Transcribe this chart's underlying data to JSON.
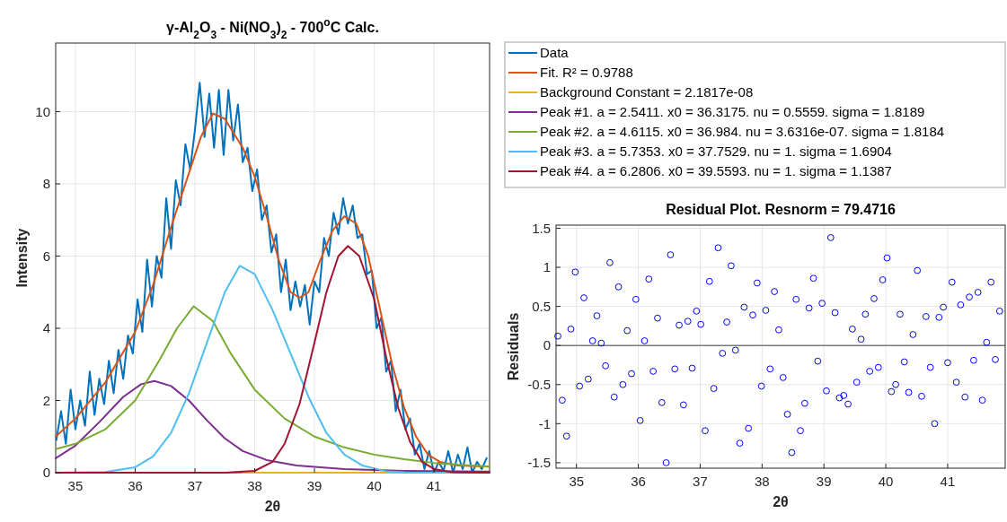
{
  "chart_data": [
    {
      "type": "line",
      "title": "γ-Al$_{2}$O$_{3}$ - Ni(NO$_{3}$)$_{2}$ - 700$^{o}$C Calc.",
      "xlabel": "2θ",
      "ylabel": "Intensity",
      "xlim": [
        34.67,
        41.93
      ],
      "xticks": [
        35,
        36,
        37,
        38,
        39,
        40,
        41
      ],
      "ylim": [
        0,
        11.9
      ],
      "yticks": [
        0,
        2,
        4,
        6,
        8,
        10
      ],
      "grid": true,
      "legend": "right",
      "series": [
        {
          "name": "Data",
          "color": "#0072bd",
          "x": [
            34.68,
            34.76,
            34.84,
            34.92,
            35.0,
            35.08,
            35.16,
            35.24,
            35.32,
            35.4,
            35.48,
            35.56,
            35.64,
            35.72,
            35.8,
            35.88,
            35.96,
            36.04,
            36.12,
            36.2,
            36.28,
            36.36,
            36.44,
            36.52,
            36.6,
            36.68,
            36.76,
            36.84,
            36.92,
            37.0,
            37.08,
            37.16,
            37.24,
            37.32,
            37.4,
            37.48,
            37.56,
            37.64,
            37.72,
            37.8,
            37.88,
            37.96,
            38.04,
            38.12,
            38.2,
            38.28,
            38.36,
            38.44,
            38.52,
            38.6,
            38.68,
            38.76,
            38.84,
            38.92,
            39.0,
            39.08,
            39.16,
            39.24,
            39.32,
            39.4,
            39.48,
            39.56,
            39.64,
            39.72,
            39.8,
            39.88,
            39.96,
            40.04,
            40.12,
            40.2,
            40.28,
            40.36,
            40.44,
            40.52,
            40.6,
            40.68,
            40.76,
            40.84,
            40.92,
            41.0,
            41.08,
            41.16,
            41.24,
            41.32,
            41.4,
            41.48,
            41.56,
            41.64,
            41.72,
            41.8,
            41.88
          ],
          "values": [
            0.9,
            1.7,
            0.8,
            2.3,
            1.2,
            2.0,
            1.3,
            2.8,
            1.6,
            2.6,
            1.9,
            3.1,
            2.2,
            3.4,
            2.6,
            3.8,
            3.3,
            4.8,
            3.9,
            5.9,
            4.6,
            6.0,
            5.4,
            7.6,
            6.2,
            8.1,
            7.4,
            9.1,
            8.4,
            9.5,
            10.8,
            9.3,
            10.5,
            9.0,
            10.6,
            8.8,
            10.6,
            9.2,
            10.2,
            8.6,
            9.0,
            7.8,
            8.4,
            7.0,
            7.4,
            6.1,
            6.6,
            5.0,
            5.9,
            4.5,
            5.3,
            4.6,
            5.2,
            4.1,
            5.3,
            5.0,
            6.5,
            6.0,
            7.2,
            6.6,
            7.6,
            6.9,
            7.4,
            6.5,
            6.6,
            5.5,
            5.6,
            4.0,
            4.3,
            2.8,
            3.1,
            1.7,
            2.3,
            1.2,
            1.5,
            0.5,
            0.8,
            0.1,
            0.6,
            0.0,
            0.3,
            0.05,
            0.6,
            0.0,
            0.5,
            0.1,
            0.7,
            0.0,
            0.3,
            0.1,
            0.4
          ]
        },
        {
          "name": "Fit. R² = 0.9788",
          "color": "#d95319",
          "x": [
            34.67,
            35.0,
            35.5,
            36.0,
            36.3,
            36.6,
            36.9,
            37.1,
            37.3,
            37.5,
            37.8,
            38.0,
            38.2,
            38.4,
            38.6,
            38.75,
            38.9,
            39.1,
            39.3,
            39.5,
            39.7,
            39.9,
            40.1,
            40.3,
            40.5,
            40.7,
            40.9,
            41.1,
            41.4,
            41.93
          ],
          "values": [
            1.0,
            1.5,
            2.5,
            3.9,
            5.2,
            6.8,
            8.3,
            9.3,
            9.95,
            9.8,
            9.0,
            8.2,
            7.1,
            5.9,
            5.0,
            4.85,
            5.0,
            5.9,
            6.7,
            7.1,
            6.9,
            6.0,
            4.5,
            3.0,
            1.8,
            1.0,
            0.5,
            0.3,
            0.2,
            0.17
          ]
        },
        {
          "name": "Background Constant = 2.1817e-08",
          "color": "#edb120",
          "x": [
            37.8,
            40.5
          ],
          "values": [
            0,
            0
          ]
        },
        {
          "name": "Peak #1. a = 2.5411. x0 = 36.3175. nu = 0.5559. sigma = 1.8189",
          "color": "#7e2f8e",
          "x": [
            34.67,
            35.0,
            35.4,
            35.8,
            36.1,
            36.32,
            36.6,
            36.9,
            37.2,
            37.5,
            37.8,
            38.2,
            38.7,
            39.5,
            40.5,
            41.93
          ],
          "values": [
            0.4,
            0.75,
            1.4,
            2.1,
            2.45,
            2.54,
            2.4,
            2.0,
            1.45,
            0.95,
            0.6,
            0.35,
            0.2,
            0.1,
            0.05,
            0.03
          ]
        },
        {
          "name": "Peak #2. a = 4.6115. x0 = 36.984. nu = 3.6316e-07. sigma = 1.8184",
          "color": "#77ac30",
          "x": [
            34.67,
            35.0,
            35.5,
            36.0,
            36.4,
            36.7,
            36.98,
            37.3,
            37.6,
            38.0,
            38.5,
            39.0,
            39.5,
            40.0,
            40.5,
            41.0,
            41.5,
            41.93
          ],
          "values": [
            0.65,
            0.8,
            1.2,
            2.0,
            3.1,
            4.0,
            4.61,
            4.2,
            3.3,
            2.3,
            1.5,
            1.0,
            0.7,
            0.5,
            0.37,
            0.27,
            0.21,
            0.17
          ]
        },
        {
          "name": "Peak #3. a = 5.7353. x0 = 37.7529. nu = 1. sigma = 1.6904",
          "color": "#4dbeee",
          "x": [
            34.67,
            35.5,
            36.0,
            36.3,
            36.6,
            36.9,
            37.2,
            37.5,
            37.75,
            38.0,
            38.3,
            38.6,
            38.9,
            39.2,
            39.5,
            39.8,
            40.2,
            40.6,
            41.93
          ],
          "values": [
            0,
            0.02,
            0.15,
            0.45,
            1.1,
            2.2,
            3.6,
            5.0,
            5.73,
            5.5,
            4.5,
            3.3,
            2.1,
            1.1,
            0.5,
            0.2,
            0.04,
            0,
            0
          ]
        },
        {
          "name": "Peak #4. a = 6.2806. x0 = 39.5593. nu = 1. sigma = 1.1387",
          "color": "#a2142f",
          "x": [
            34.67,
            37.5,
            38.0,
            38.3,
            38.5,
            38.75,
            39.0,
            39.2,
            39.4,
            39.56,
            39.75,
            40.0,
            40.2,
            40.4,
            40.6,
            40.8,
            41.0,
            41.3,
            41.93
          ],
          "values": [
            0,
            0,
            0.05,
            0.3,
            0.8,
            1.9,
            3.6,
            5.0,
            6.0,
            6.28,
            6.0,
            4.8,
            3.2,
            1.8,
            0.85,
            0.3,
            0.1,
            0.01,
            0
          ]
        }
      ]
    },
    {
      "type": "scatter",
      "title": "Residual Plot. Resnorm = 79.4716",
      "xlabel": "2θ",
      "ylabel": "Residuals",
      "xlim": [
        34.67,
        41.93
      ],
      "xticks": [
        35,
        36,
        37,
        38,
        39,
        40,
        41
      ],
      "ylim": [
        -1.57,
        1.54
      ],
      "yticks": [
        -1.5,
        -1,
        -0.5,
        0,
        0.5,
        1,
        1.5
      ],
      "grid": true,
      "marker": "circle",
      "ref_lines": [
        {
          "axis": "y",
          "value": 0,
          "color": "#404040"
        }
      ],
      "series": [
        {
          "color": "#0000ff",
          "x": [
            34.7,
            34.77,
            34.84,
            34.91,
            34.98,
            35.05,
            35.12,
            35.19,
            35.26,
            35.33,
            35.4,
            35.47,
            35.54,
            35.61,
            35.68,
            35.75,
            35.82,
            35.89,
            35.96,
            36.03,
            36.1,
            36.17,
            36.24,
            36.31,
            36.38,
            36.45,
            36.52,
            36.59,
            36.66,
            36.73,
            36.8,
            36.87,
            36.94,
            37.01,
            37.08,
            37.15,
            37.22,
            37.29,
            37.36,
            37.43,
            37.5,
            37.57,
            37.64,
            37.71,
            37.78,
            37.85,
            37.92,
            37.99,
            38.06,
            38.13,
            38.2,
            38.27,
            38.34,
            38.41,
            38.48,
            38.55,
            38.62,
            38.69,
            38.76,
            38.83,
            38.9,
            38.97,
            39.04,
            39.11,
            39.18,
            39.25,
            39.32,
            39.39,
            39.46,
            39.53,
            39.6,
            39.67,
            39.74,
            39.81,
            39.88,
            39.95,
            40.02,
            40.09,
            40.16,
            40.23,
            40.3,
            40.37,
            40.44,
            40.51,
            40.58,
            40.65,
            40.72,
            40.79,
            40.86,
            40.93,
            41.0,
            41.07,
            41.14,
            41.21,
            41.28,
            41.35,
            41.42,
            41.49,
            41.56,
            41.63,
            41.7,
            41.77,
            41.84
          ],
          "values": [
            0.12,
            -0.7,
            -1.16,
            0.21,
            0.94,
            -0.52,
            0.61,
            -0.43,
            0.06,
            0.38,
            0.03,
            -0.26,
            1.06,
            -0.66,
            0.75,
            -0.5,
            0.19,
            -0.36,
            0.59,
            -0.96,
            0.06,
            0.85,
            -0.33,
            0.35,
            -0.73,
            -1.5,
            1.16,
            -0.3,
            0.26,
            -0.76,
            0.31,
            -0.29,
            0.44,
            0.27,
            -1.09,
            0.82,
            -0.55,
            1.25,
            -0.1,
            0.3,
            1.02,
            -0.06,
            -1.25,
            0.49,
            -1.06,
            0.39,
            0.8,
            -0.52,
            0.45,
            -0.3,
            0.69,
            0.2,
            -0.41,
            -0.88,
            -1.37,
            0.59,
            -1.09,
            -0.74,
            0.48,
            0.86,
            -0.2,
            0.54,
            -0.58,
            1.38,
            0.42,
            -0.67,
            -0.64,
            -0.75,
            0.21,
            -0.47,
            0.08,
            0.4,
            -0.33,
            0.6,
            -0.28,
            0.84,
            1.12,
            -0.59,
            -0.5,
            0.4,
            -0.21,
            -0.6,
            0.14,
            0.96,
            -0.65,
            0.37,
            -0.28,
            -1.0,
            0.36,
            0.49,
            -0.22,
            0.81,
            -0.47,
            0.52,
            -0.66,
            0.62,
            -0.19,
            0.68,
            -0.7,
            0.04,
            0.81,
            -0.18,
            0.44
          ]
        }
      ]
    }
  ]
}
